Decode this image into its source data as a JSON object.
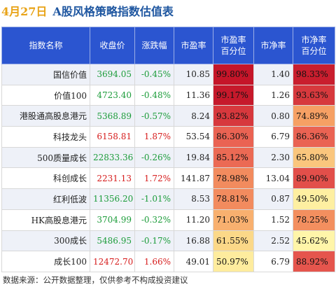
{
  "title": {
    "date": "4月27日",
    "main": "A股风格策略指数估值表"
  },
  "headers": {
    "name": "指数名称",
    "price": "收盘价",
    "change": "涨跌幅",
    "pe": "市盈率",
    "pe_pct_1": "市盈率",
    "pe_pct_2": "百分位",
    "pb": "市净率",
    "pb_pct_1": "市净率",
    "pb_pct_2": "百分位"
  },
  "rows": [
    {
      "name": "国信价值",
      "price": "3694.05",
      "change": "-0.45%",
      "pe": "10.85",
      "pe_pct": "99.80%",
      "pb": "1.40",
      "pb_pct": "98.33%",
      "dir": "down"
    },
    {
      "name": "价值100",
      "price": "4723.40",
      "change": "-0.48%",
      "pe": "11.36",
      "pe_pct": "99.17%",
      "pb": "1.26",
      "pb_pct": "93.63%",
      "dir": "down"
    },
    {
      "name": "港股通高股息港元",
      "price": "5368.89",
      "change": "-0.57%",
      "pe": "8.24",
      "pe_pct": "93.82%",
      "pb": "0.80",
      "pb_pct": "74.89%",
      "dir": "down"
    },
    {
      "name": "科技龙头",
      "price": "6158.81",
      "change": "1.87%",
      "pe": "53.54",
      "pe_pct": "86.30%",
      "pb": "6.79",
      "pb_pct": "86.36%",
      "dir": "up"
    },
    {
      "name": "500质量成长",
      "price": "22833.36",
      "change": "-0.26%",
      "pe": "19.84",
      "pe_pct": "85.12%",
      "pb": "2.30",
      "pb_pct": "65.80%",
      "dir": "down"
    },
    {
      "name": "科创成长",
      "price": "2231.13",
      "change": "1.72%",
      "pe": "141.87",
      "pe_pct": "78.98%",
      "pb": "13.04",
      "pb_pct": "89.90%",
      "dir": "up"
    },
    {
      "name": "红利低波",
      "price": "11356.20",
      "change": "-1.01%",
      "pe": "8.53",
      "pe_pct": "78.81%",
      "pb": "0.87",
      "pb_pct": "49.50%",
      "dir": "down"
    },
    {
      "name": "HK高股息港元",
      "price": "3704.99",
      "change": "-0.32%",
      "pe": "11.20",
      "pe_pct": "71.03%",
      "pb": "1.52",
      "pb_pct": "78.25%",
      "dir": "down"
    },
    {
      "name": "300成长",
      "price": "5486.95",
      "change": "-0.17%",
      "pe": "16.88",
      "pe_pct": "61.55%",
      "pb": "2.52",
      "pb_pct": "45.62%",
      "dir": "down"
    },
    {
      "name": "成长100",
      "price": "12472.70",
      "change": "1.66%",
      "pe": "49.01",
      "pe_pct": "50.97%",
      "pb": "6.79",
      "pb_pct": "88.92%",
      "dir": "up"
    }
  ],
  "colors": {
    "up": "#d61c1c",
    "down": "#1c9c3a",
    "header_bg": "#2b55d0",
    "title_date": "#e8a317",
    "title_main": "#1e56a0"
  },
  "footer": "数据来源：公开数据整理，仅供参考不构成投资建议"
}
